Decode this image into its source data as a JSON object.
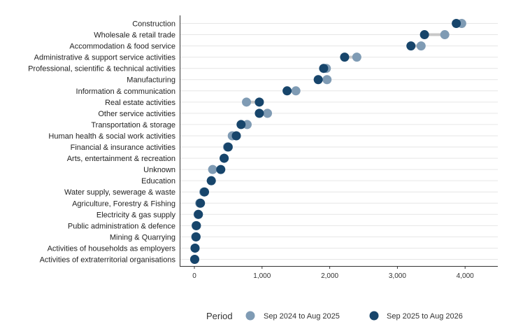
{
  "chart_data": {
    "type": "dumbbell",
    "xlim": [
      0,
      4400
    ],
    "x_ticks": [
      0,
      1000,
      2000,
      3000,
      4000
    ],
    "x_tick_labels": [
      "0",
      "1,000",
      "2,000",
      "3,000",
      "4,000"
    ],
    "grid": "horizontal",
    "legend_placement": "bottom",
    "legend_title": "Period",
    "categories": [
      "Construction",
      "Wholesale & retail trade",
      "Accommodation & food service",
      "Administrative & support service activities",
      "Professional, scientific & technical activities",
      "Manufacturing",
      "Information & communication",
      "Real estate activities",
      "Other service activities",
      "Transportation & storage",
      "Human health & social work activities",
      "Financial & insurance activities",
      "Arts, entertainment & recreation",
      "Unknown",
      "Education",
      "Water supply, sewerage & waste",
      "Agriculture, Forestry & Fishing",
      "Electricity & gas supply",
      "Public administration & defence",
      "Mining & Quarrying",
      "Activities of households as employers",
      "Activities of extraterritorial organisations"
    ],
    "series": [
      {
        "name": "Sep 2024 to Aug 2025",
        "color": "#7f9bb4",
        "values": [
          3950,
          3700,
          3350,
          2400,
          1950,
          1960,
          1500,
          770,
          1080,
          780,
          560,
          490,
          440,
          270,
          250,
          140,
          80,
          55,
          25,
          20,
          10,
          5
        ]
      },
      {
        "name": "Sep 2025 to Aug 2026",
        "color": "#17456b",
        "values": [
          3870,
          3400,
          3200,
          2220,
          1910,
          1830,
          1370,
          960,
          960,
          690,
          620,
          500,
          440,
          390,
          250,
          150,
          90,
          60,
          30,
          25,
          10,
          5
        ]
      }
    ]
  }
}
